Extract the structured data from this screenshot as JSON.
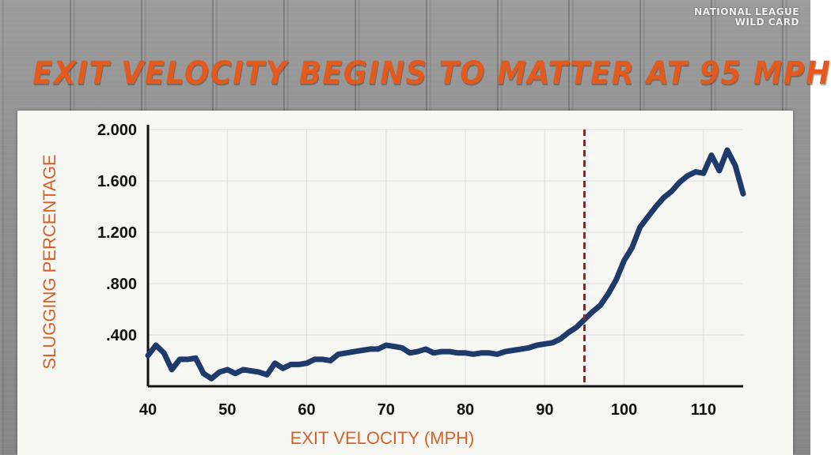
{
  "network": {
    "line1": "NATIONAL LEAGUE",
    "line2": "WILD CARD"
  },
  "colors": {
    "title": "#e35a1c",
    "axis_label": "#d4622a",
    "line": "#1d3a6b",
    "marker": "#a31a1a",
    "grid": "#dcdcdc"
  },
  "chart_data": {
    "type": "line",
    "title": "EXIT VELOCITY BEGINS TO MATTER AT 95 MPH",
    "xlabel": "EXIT VELOCITY (MPH)",
    "ylabel": "SLUGGING PERCENTAGE",
    "xlim": [
      40,
      115
    ],
    "ylim": [
      0,
      2.0
    ],
    "xticks": [
      "40",
      "50",
      "60",
      "70",
      "80",
      "90",
      "100",
      "110"
    ],
    "xtick_values": [
      40,
      50,
      60,
      70,
      80,
      90,
      100,
      110
    ],
    "yticks": [
      ".400",
      ".800",
      "1.200",
      "1.600",
      "2.000"
    ],
    "ytick_values": [
      0.4,
      0.8,
      1.2,
      1.6,
      2.0
    ],
    "grid": true,
    "reference_line": {
      "x": 95,
      "style": "dashed",
      "color": "#a31a1a"
    },
    "series": [
      {
        "x": [
          40,
          41,
          42,
          43,
          44,
          45,
          46,
          47,
          48,
          49,
          50,
          51,
          52,
          53,
          54,
          55,
          56,
          57,
          58,
          59,
          60,
          61,
          62,
          63,
          64,
          65,
          66,
          67,
          68,
          69,
          70,
          71,
          72,
          73,
          74,
          75,
          76,
          77,
          78,
          79,
          80,
          81,
          82,
          83,
          84,
          85,
          86,
          87,
          88,
          89,
          90,
          91,
          92,
          93,
          94,
          95,
          96,
          97,
          98,
          99,
          100,
          101,
          102,
          103,
          104,
          105,
          106,
          107,
          108,
          109,
          110,
          111,
          112,
          113,
          114,
          115
        ],
        "y": [
          0.24,
          0.32,
          0.26,
          0.13,
          0.21,
          0.21,
          0.22,
          0.1,
          0.06,
          0.11,
          0.13,
          0.1,
          0.13,
          0.12,
          0.11,
          0.09,
          0.18,
          0.14,
          0.17,
          0.17,
          0.18,
          0.21,
          0.21,
          0.2,
          0.25,
          0.26,
          0.27,
          0.28,
          0.29,
          0.29,
          0.32,
          0.31,
          0.3,
          0.26,
          0.27,
          0.29,
          0.26,
          0.27,
          0.27,
          0.26,
          0.26,
          0.25,
          0.26,
          0.26,
          0.25,
          0.27,
          0.28,
          0.29,
          0.3,
          0.32,
          0.33,
          0.34,
          0.37,
          0.42,
          0.46,
          0.52,
          0.58,
          0.63,
          0.72,
          0.83,
          0.98,
          1.08,
          1.24,
          1.32,
          1.4,
          1.47,
          1.52,
          1.59,
          1.64,
          1.67,
          1.66,
          1.8,
          1.68,
          1.84,
          1.72,
          1.5
        ]
      }
    ]
  }
}
